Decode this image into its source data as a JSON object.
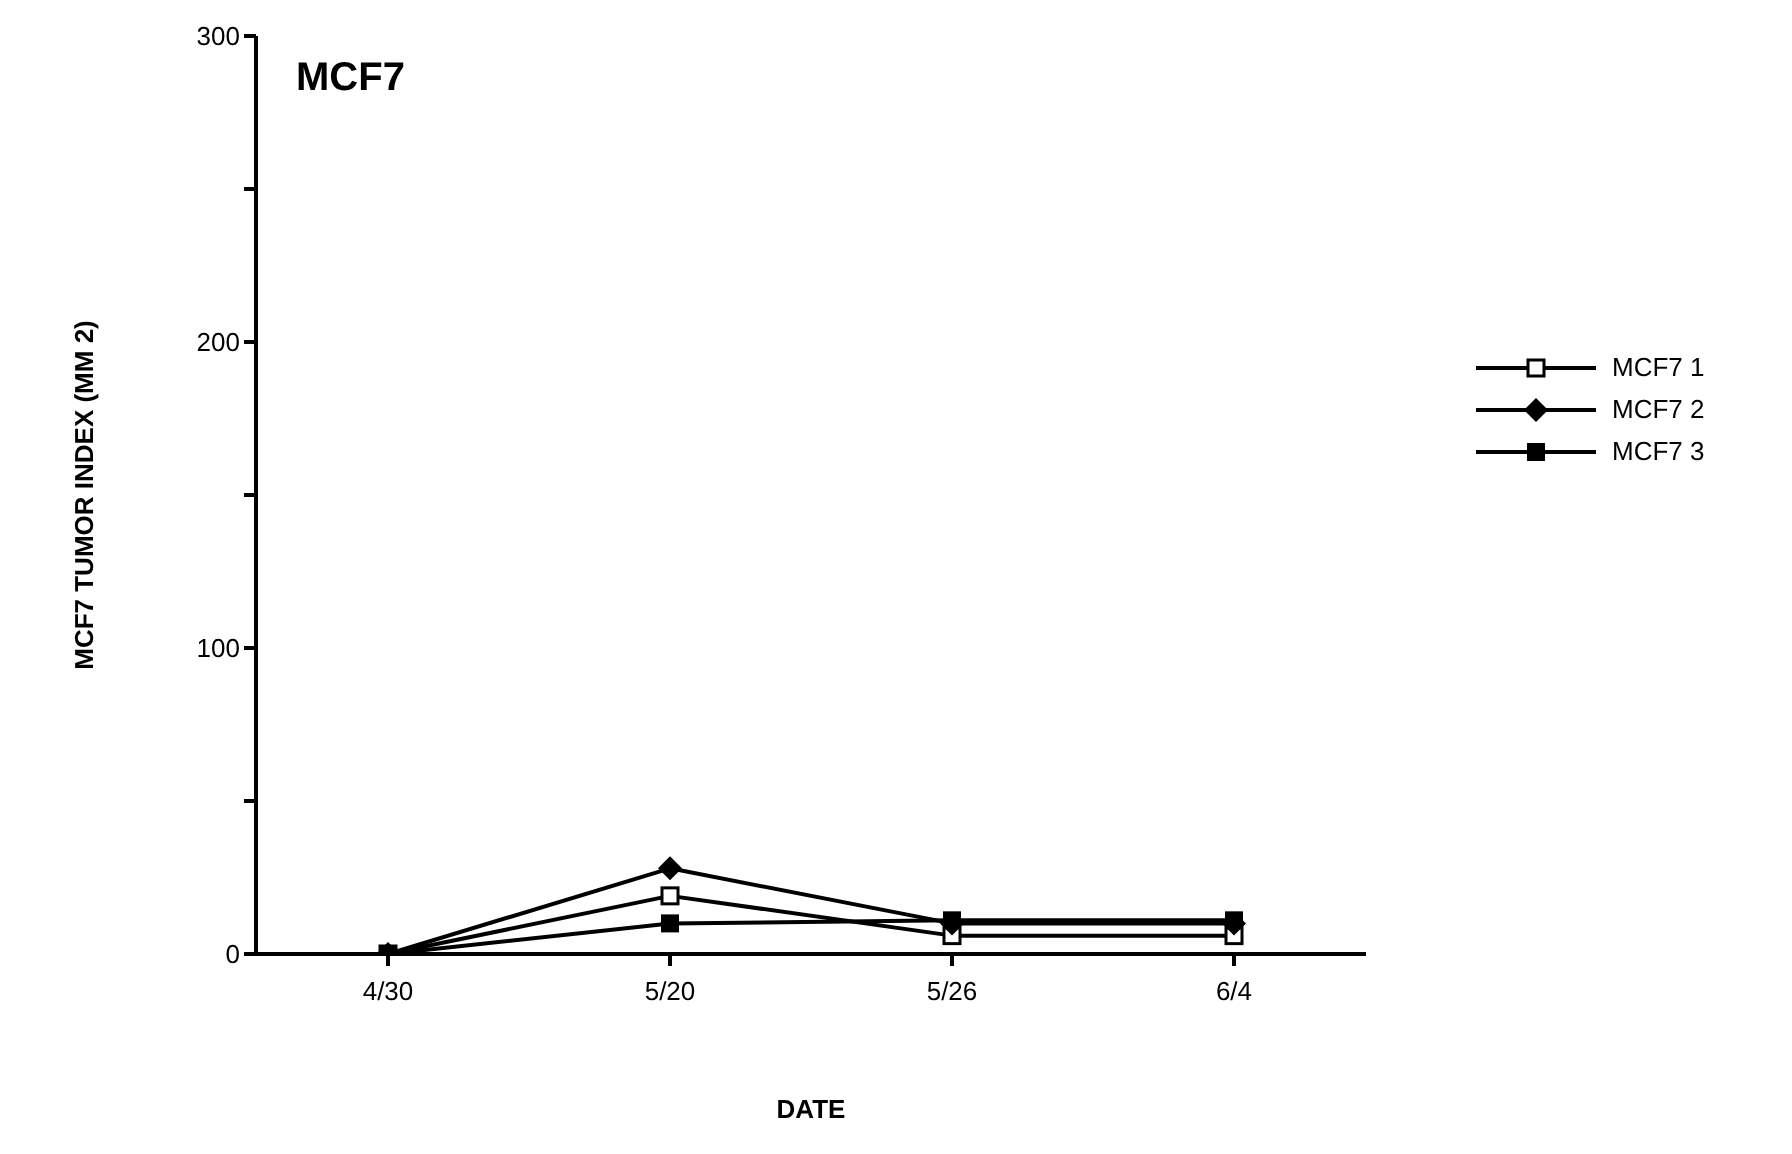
{
  "chart_data": {
    "type": "line",
    "title": "MCF7",
    "xlabel": "DATE",
    "ylabel": "MCF7 TUMOR INDEX (MM 2)",
    "categories": [
      "4/30",
      "5/20",
      "5/26",
      "6/4"
    ],
    "series": [
      {
        "name": "MCF7 1",
        "color": "#000000",
        "marker": "square",
        "values": [
          0,
          19,
          6,
          6
        ]
      },
      {
        "name": "MCF7 2",
        "color": "#000000",
        "marker": "diamond",
        "values": [
          0,
          28,
          10,
          10
        ]
      },
      {
        "name": "MCF7 3",
        "color": "#000000",
        "marker": "square",
        "values": [
          0,
          10,
          11,
          11
        ]
      }
    ],
    "ylim": [
      0,
      300
    ],
    "yticks": [
      0,
      {
        "value": 50,
        "label": null
      },
      100,
      {
        "value": 150,
        "label": null
      },
      200,
      {
        "value": 250,
        "label": null
      },
      300
    ],
    "grid": false,
    "legend": "right"
  }
}
